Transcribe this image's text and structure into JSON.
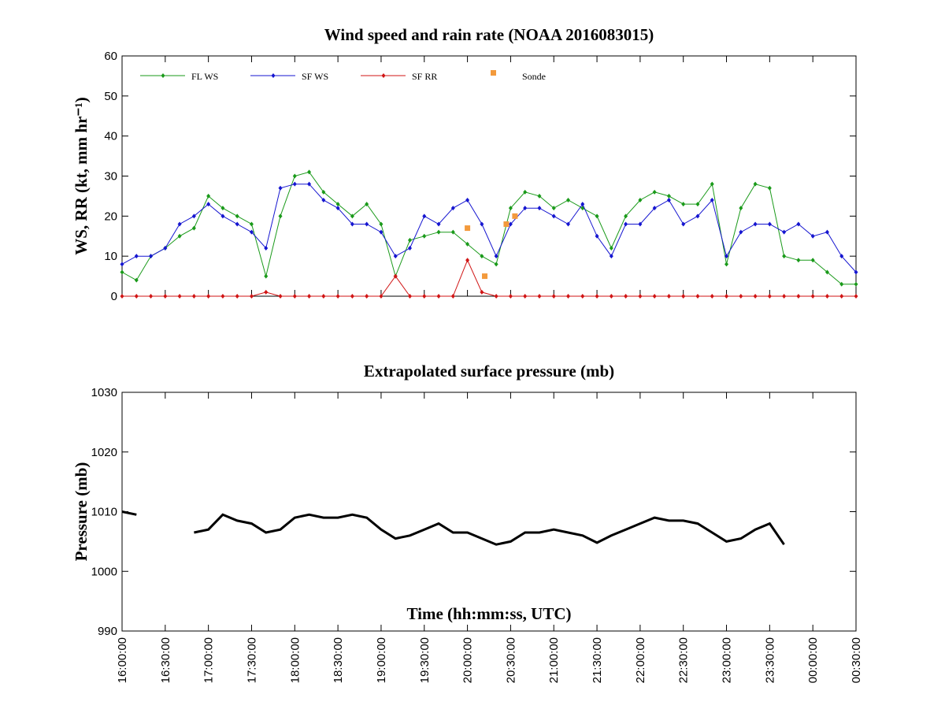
{
  "chart_data": [
    {
      "type": "line",
      "title": "Wind speed and rain rate (NOAA 2016083015)",
      "ylabel": "WS, RR (kt, mm hr⁻¹)",
      "legend": "upper left",
      "x": [
        "16:00:00",
        "16:10:00",
        "16:20:00",
        "16:30:00",
        "16:40:00",
        "16:50:00",
        "17:00:00",
        "17:10:00",
        "17:20:00",
        "17:30:00",
        "17:40:00",
        "17:50:00",
        "18:00:00",
        "18:10:00",
        "18:20:00",
        "18:30:00",
        "18:40:00",
        "18:50:00",
        "19:00:00",
        "19:10:00",
        "19:20:00",
        "19:30:00",
        "19:40:00",
        "19:50:00",
        "20:00:00",
        "20:10:00",
        "20:20:00",
        "20:30:00",
        "20:40:00",
        "20:50:00",
        "21:00:00",
        "21:10:00",
        "21:20:00",
        "21:30:00",
        "21:40:00",
        "21:50:00",
        "22:00:00",
        "22:10:00",
        "22:20:00",
        "22:30:00",
        "22:40:00",
        "22:50:00",
        "23:00:00",
        "23:10:00",
        "23:20:00",
        "23:30:00",
        "23:40:00",
        "23:50:00",
        "00:00:00",
        "00:10:00",
        "00:20:00",
        "00:30:00"
      ],
      "series": [
        {
          "name": "FL WS",
          "color": "#1a9a1a",
          "marker": "diamond",
          "values": [
            6,
            4,
            10,
            12,
            15,
            17,
            25,
            22,
            20,
            18,
            5,
            20,
            30,
            31,
            26,
            23,
            20,
            23,
            18,
            5,
            14,
            15,
            16,
            16,
            13,
            10,
            8,
            22,
            26,
            25,
            22,
            24,
            22,
            20,
            12,
            20,
            24,
            26,
            25,
            23,
            23,
            28,
            8,
            22,
            28,
            27,
            10,
            9,
            9,
            6,
            3,
            3
          ]
        },
        {
          "name": "SF WS",
          "color": "#1515d0",
          "marker": "diamond",
          "values": [
            8,
            10,
            10,
            12,
            18,
            20,
            23,
            20,
            18,
            16,
            12,
            27,
            28,
            28,
            24,
            22,
            18,
            18,
            16,
            10,
            12,
            20,
            18,
            22,
            24,
            18,
            10,
            18,
            22,
            22,
            20,
            18,
            23,
            15,
            10,
            18,
            18,
            22,
            24,
            18,
            20,
            24,
            10,
            16,
            18,
            18,
            16,
            18,
            15,
            16,
            10,
            6
          ]
        },
        {
          "name": "SF RR",
          "color": "#d01515",
          "marker": "diamond",
          "values": [
            0,
            0,
            0,
            0,
            0,
            0,
            0,
            0,
            0,
            0,
            1,
            0,
            0,
            0,
            0,
            0,
            0,
            0,
            0,
            5,
            0,
            0,
            0,
            0,
            9,
            1,
            0,
            0,
            0,
            0,
            0,
            0,
            0,
            0,
            0,
            0,
            0,
            0,
            0,
            0,
            0,
            0,
            0,
            0,
            0,
            0,
            0,
            0,
            0,
            0,
            0,
            0
          ]
        },
        {
          "name": "Sonde",
          "color": "#f39a3c",
          "marker": "square",
          "line": false,
          "x": [
            "20:00:00",
            "20:12:00",
            "20:27:00",
            "20:33:00"
          ],
          "values": [
            17,
            5,
            18,
            20
          ]
        }
      ],
      "xlim": [
        "16:00:00",
        "00:30:00"
      ],
      "xticks": [
        "16:00:00",
        "16:30:00",
        "17:00:00",
        "17:30:00",
        "18:00:00",
        "18:30:00",
        "19:00:00",
        "19:30:00",
        "20:00:00",
        "20:30:00",
        "21:00:00",
        "21:30:00",
        "22:00:00",
        "22:30:00",
        "23:00:00",
        "23:30:00",
        "00:00:00",
        "00:30:00"
      ],
      "ylim": [
        0,
        60
      ],
      "yticks": [
        0,
        10,
        20,
        30,
        40,
        50,
        60
      ]
    },
    {
      "type": "line",
      "title": "Extrapolated surface pressure (mb)",
      "ylabel": "Pressure (mb)",
      "xlabel": "Time (hh:mm:ss, UTC)",
      "x": [
        "16:00:00",
        "16:10:00",
        "16:20:00",
        "16:30:00",
        "16:40:00",
        "16:50:00",
        "17:00:00",
        "17:10:00",
        "17:20:00",
        "17:30:00",
        "17:40:00",
        "17:50:00",
        "18:00:00",
        "18:10:00",
        "18:20:00",
        "18:30:00",
        "18:40:00",
        "18:50:00",
        "19:00:00",
        "19:10:00",
        "19:20:00",
        "19:30:00",
        "19:40:00",
        "19:50:00",
        "20:00:00",
        "20:10:00",
        "20:20:00",
        "20:30:00",
        "20:40:00",
        "20:50:00",
        "21:00:00",
        "21:10:00",
        "21:20:00",
        "21:30:00",
        "21:40:00",
        "21:50:00",
        "22:00:00",
        "22:10:00",
        "22:20:00",
        "22:30:00",
        "22:40:00",
        "22:50:00",
        "23:00:00",
        "23:10:00",
        "23:20:00",
        "23:30:00",
        "23:40:00",
        "23:50:00",
        "00:00:00",
        "00:10:00",
        "00:20:00",
        "00:30:00"
      ],
      "series": [
        {
          "name": "Pressure",
          "color": "#000000",
          "values": [
            1010,
            1009.5,
            null,
            null,
            null,
            1006.5,
            1007,
            1009.5,
            1008.5,
            1008,
            1006.5,
            1007,
            1009,
            1009.5,
            1009,
            1009,
            1009.5,
            1009,
            1007,
            1005.5,
            1006,
            1007,
            1008,
            1006.5,
            1006.5,
            1005.5,
            1004.5,
            1005,
            1006.5,
            1006.5,
            1007,
            1006.5,
            1006,
            1004.8,
            1006,
            1007,
            1008,
            1009,
            1008.5,
            1008.5,
            1008,
            1006.5,
            1005,
            1005.5,
            1007,
            1008,
            1004.5,
            null,
            null,
            null,
            null,
            null
          ]
        }
      ],
      "xlim": [
        "16:00:00",
        "00:30:00"
      ],
      "xticks": [
        "16:00:00",
        "16:30:00",
        "17:00:00",
        "17:30:00",
        "18:00:00",
        "18:30:00",
        "19:00:00",
        "19:30:00",
        "20:00:00",
        "20:30:00",
        "21:00:00",
        "21:30:00",
        "22:00:00",
        "22:30:00",
        "23:00:00",
        "23:30:00",
        "00:00:00",
        "00:30:00"
      ],
      "ylim": [
        990,
        1030
      ],
      "yticks": [
        990,
        1000,
        1010,
        1020,
        1030
      ]
    }
  ]
}
